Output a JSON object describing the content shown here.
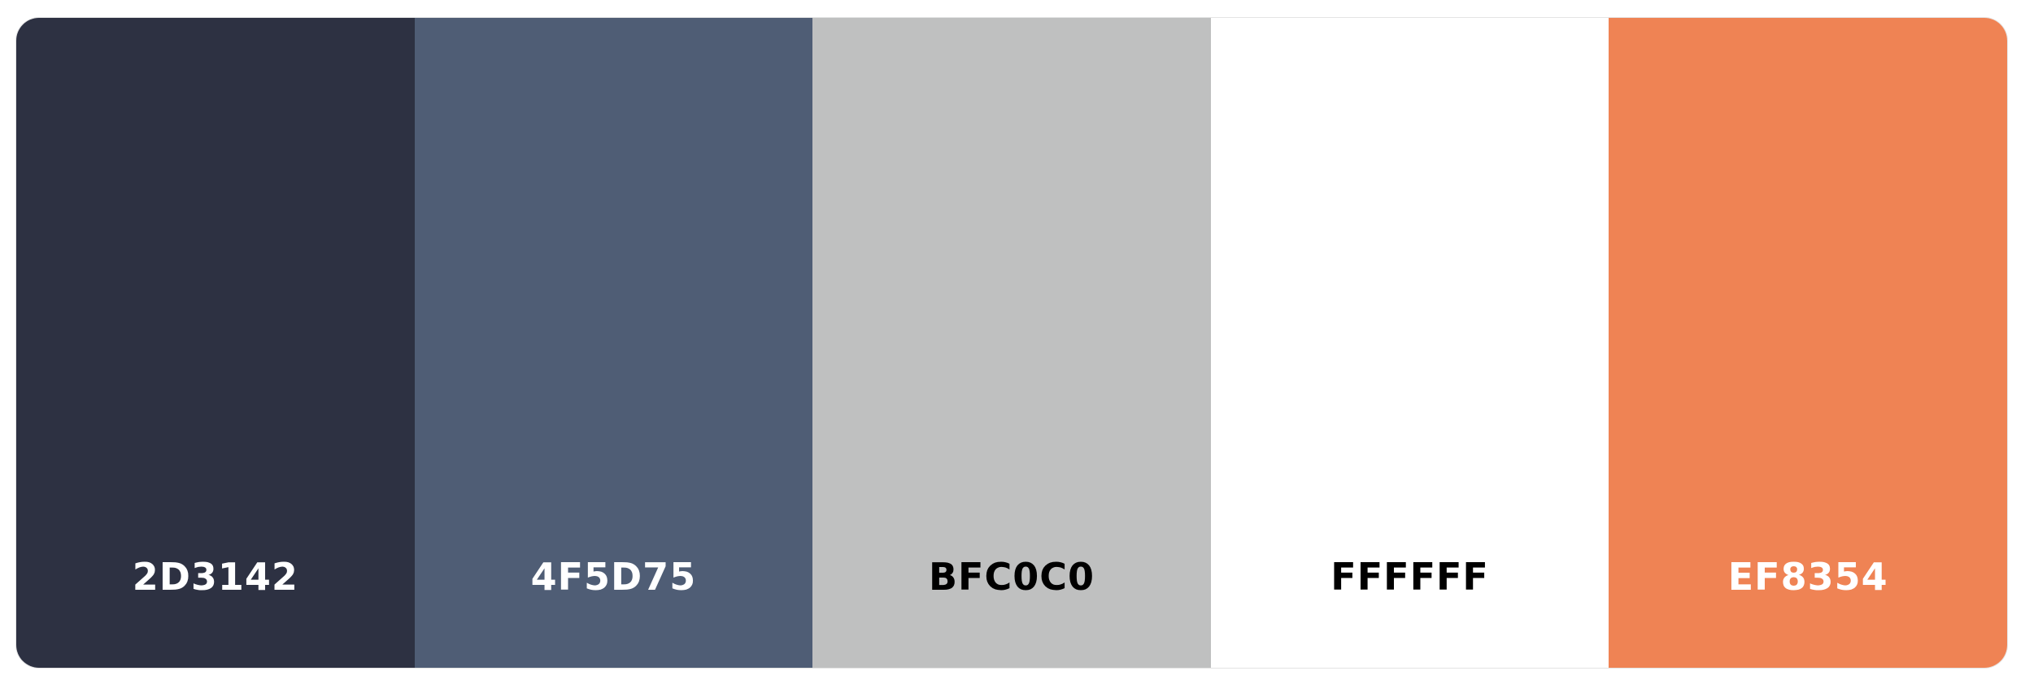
{
  "swatches": [
    {
      "hex": "2D3142",
      "color": "#2D3142",
      "text_color": "#FFFFFF"
    },
    {
      "hex": "4F5D75",
      "color": "#4F5D75",
      "text_color": "#FFFFFF"
    },
    {
      "hex": "BFC0C0",
      "color": "#BFC0C0",
      "text_color": "#000000"
    },
    {
      "hex": "FFFFFF",
      "color": "#FFFFFF",
      "text_color": "#000000"
    },
    {
      "hex": "EF8354",
      "color": "#EF8354",
      "text_color": "#FFFFFF"
    }
  ]
}
